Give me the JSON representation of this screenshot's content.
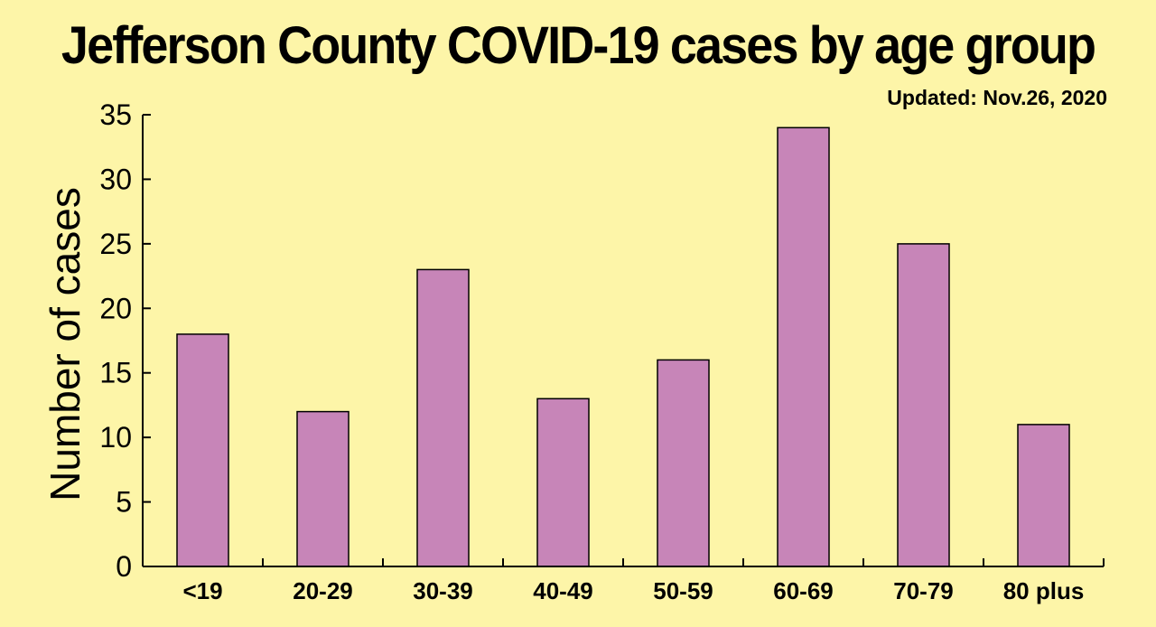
{
  "chart_data": {
    "type": "bar",
    "title": "Jefferson County COVID-19 cases by age group",
    "subtitle": "Updated: Nov.26, 2020",
    "xlabel": "",
    "ylabel": "Number of cases",
    "categories": [
      "<19",
      "20-29",
      "30-39",
      "40-49",
      "50-59",
      "60-69",
      "70-79",
      "80 plus"
    ],
    "values": [
      18,
      12,
      23,
      13,
      16,
      34,
      25,
      11
    ],
    "ylim": [
      0,
      35
    ],
    "yticks": [
      0,
      5,
      10,
      15,
      20,
      25,
      30,
      35
    ],
    "grid": false,
    "legend": "none",
    "bar_color": "#c785b8",
    "background_color": "#fdf5a8"
  }
}
